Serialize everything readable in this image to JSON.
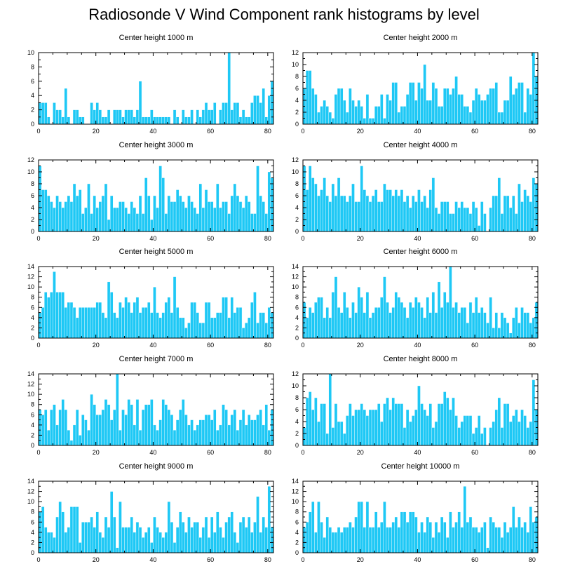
{
  "title": "Radiosonde V Wind Component rank histograms by level",
  "colors": {
    "bar": "#1ec8f5",
    "axis": "#000000"
  },
  "chart_data": [
    {
      "type": "bar",
      "title": "Center height 1000 m",
      "xlim": [
        0,
        82
      ],
      "ylim": [
        0,
        10
      ],
      "xticks": [
        0,
        20,
        40,
        60,
        80
      ],
      "yticks": [
        0,
        2,
        4,
        6,
        8,
        10
      ],
      "values": [
        3,
        3,
        3,
        1,
        0,
        3,
        2,
        2,
        1,
        5,
        1,
        0,
        2,
        2,
        1,
        1,
        0,
        0,
        3,
        2,
        3,
        2,
        1,
        1,
        2,
        0,
        2,
        2,
        2,
        1,
        2,
        2,
        2,
        1,
        2,
        6,
        1,
        1,
        1,
        2,
        1,
        1,
        1,
        1,
        1,
        1,
        0,
        2,
        1,
        0,
        2,
        1,
        1,
        2,
        0,
        2,
        1,
        2,
        3,
        2,
        2,
        3,
        0,
        2,
        3,
        3,
        10,
        2,
        3,
        3,
        1,
        2,
        1,
        1,
        3,
        4,
        4,
        3,
        5,
        1,
        4,
        6
      ]
    },
    {
      "type": "bar",
      "title": "Center height 2000 m",
      "xlim": [
        0,
        82
      ],
      "ylim": [
        0,
        12
      ],
      "xticks": [
        0,
        20,
        40,
        60,
        80
      ],
      "yticks": [
        0,
        2,
        4,
        6,
        8,
        10,
        12
      ],
      "values": [
        6,
        9,
        9,
        6,
        5,
        2,
        3,
        4,
        3,
        2,
        1,
        5,
        6,
        6,
        4,
        2,
        6,
        4,
        3,
        4,
        3,
        1,
        5,
        1,
        1,
        3,
        3,
        5,
        1,
        5,
        4,
        7,
        7,
        2,
        3,
        3,
        5,
        7,
        7,
        4,
        7,
        6,
        10,
        4,
        4,
        7,
        6,
        3,
        3,
        6,
        6,
        5,
        6,
        8,
        5,
        5,
        3,
        3,
        2,
        4,
        6,
        5,
        4,
        4,
        5,
        6,
        6,
        7,
        2,
        2,
        4,
        4,
        8,
        5,
        6,
        7,
        7,
        2,
        6,
        5,
        12,
        8
      ]
    },
    {
      "type": "bar",
      "title": "Center height 3000 m",
      "xlim": [
        0,
        82
      ],
      "ylim": [
        0,
        12
      ],
      "xticks": [
        0,
        20,
        40,
        60,
        80
      ],
      "yticks": [
        0,
        2,
        4,
        6,
        8,
        10,
        12
      ],
      "values": [
        11,
        7,
        7,
        6,
        5,
        4,
        6,
        5,
        4,
        5,
        6,
        5,
        8,
        6,
        7,
        3,
        4,
        8,
        3,
        6,
        4,
        5,
        6,
        8,
        2,
        6,
        4,
        4,
        5,
        5,
        4,
        3,
        5,
        4,
        3,
        6,
        3,
        9,
        6,
        2,
        6,
        4,
        11,
        9,
        3,
        6,
        5,
        5,
        7,
        6,
        5,
        4,
        6,
        5,
        4,
        3,
        8,
        4,
        7,
        5,
        5,
        4,
        8,
        4,
        5,
        5,
        3,
        6,
        8,
        6,
        5,
        4,
        6,
        5,
        3,
        3,
        11,
        6,
        5,
        3,
        10,
        9
      ]
    },
    {
      "type": "bar",
      "title": "Center height 4000 m",
      "xlim": [
        0,
        82
      ],
      "ylim": [
        0,
        12
      ],
      "xticks": [
        0,
        20,
        40,
        60,
        80
      ],
      "yticks": [
        0,
        2,
        4,
        6,
        8,
        10,
        12
      ],
      "values": [
        11,
        7,
        11,
        9,
        8,
        6,
        7,
        9,
        6,
        5,
        8,
        6,
        9,
        6,
        6,
        5,
        6,
        8,
        5,
        5,
        11,
        7,
        6,
        5,
        6,
        7,
        5,
        5,
        8,
        7,
        7,
        6,
        7,
        6,
        7,
        5,
        6,
        4,
        6,
        5,
        7,
        5,
        6,
        4,
        7,
        9,
        4,
        3,
        5,
        5,
        5,
        3,
        3,
        5,
        4,
        5,
        4,
        4,
        3,
        5,
        4,
        1,
        5,
        3,
        0,
        4,
        6,
        6,
        9,
        3,
        6,
        6,
        4,
        6,
        3,
        8,
        5,
        7,
        6,
        5,
        9,
        8
      ]
    },
    {
      "type": "bar",
      "title": "Center height 5000 m",
      "xlim": [
        0,
        82
      ],
      "ylim": [
        0,
        14
      ],
      "xticks": [
        0,
        20,
        40,
        60,
        80
      ],
      "yticks": [
        0,
        2,
        4,
        6,
        8,
        10,
        12,
        14
      ],
      "values": [
        5,
        6,
        9,
        8,
        9,
        13,
        9,
        9,
        9,
        6,
        7,
        7,
        6,
        4,
        6,
        6,
        6,
        6,
        6,
        6,
        7,
        7,
        5,
        4,
        11,
        9,
        5,
        4,
        7,
        6,
        8,
        7,
        5,
        7,
        8,
        5,
        6,
        6,
        7,
        5,
        10,
        5,
        4,
        5,
        7,
        8,
        5,
        12,
        6,
        4,
        4,
        2,
        3,
        7,
        7,
        5,
        3,
        3,
        7,
        7,
        4,
        4,
        5,
        5,
        8,
        8,
        4,
        8,
        5,
        6,
        6,
        2,
        3,
        4,
        7,
        9,
        3,
        5,
        5,
        3,
        6,
        5
      ]
    },
    {
      "type": "bar",
      "title": "Center height 6000 m",
      "xlim": [
        0,
        82
      ],
      "ylim": [
        0,
        14
      ],
      "xticks": [
        0,
        20,
        40,
        60,
        80
      ],
      "yticks": [
        0,
        2,
        4,
        6,
        8,
        10,
        12,
        14
      ],
      "values": [
        7,
        4,
        6,
        5,
        7,
        8,
        8,
        4,
        6,
        4,
        9,
        12,
        6,
        5,
        9,
        6,
        4,
        7,
        5,
        10,
        8,
        5,
        9,
        4,
        5,
        6,
        6,
        8,
        12,
        7,
        5,
        6,
        9,
        8,
        7,
        6,
        4,
        7,
        6,
        8,
        7,
        6,
        4,
        8,
        5,
        9,
        5,
        11,
        6,
        9,
        7,
        14,
        6,
        7,
        5,
        6,
        6,
        3,
        7,
        5,
        8,
        5,
        6,
        5,
        3,
        8,
        2,
        5,
        2,
        5,
        4,
        3,
        1,
        4,
        6,
        3,
        6,
        5,
        5,
        3,
        4,
        7
      ]
    },
    {
      "type": "bar",
      "title": "Center height 7000 m",
      "xlim": [
        0,
        82
      ],
      "ylim": [
        0,
        14
      ],
      "xticks": [
        0,
        20,
        40,
        60,
        80
      ],
      "yticks": [
        0,
        2,
        4,
        6,
        8,
        10,
        12,
        14
      ],
      "values": [
        7,
        6,
        7,
        3,
        7,
        8,
        4,
        7,
        9,
        7,
        3,
        1,
        4,
        7,
        2,
        6,
        5,
        3,
        10,
        8,
        6,
        6,
        7,
        9,
        8,
        5,
        7,
        14,
        3,
        7,
        6,
        9,
        8,
        4,
        9,
        3,
        7,
        8,
        8,
        9,
        4,
        3,
        5,
        9,
        8,
        7,
        6,
        3,
        5,
        7,
        9,
        6,
        4,
        5,
        3,
        4,
        5,
        5,
        6,
        6,
        5,
        7,
        3,
        4,
        8,
        7,
        4,
        6,
        7,
        3,
        5,
        7,
        4,
        6,
        5,
        5,
        6,
        7,
        4,
        8,
        3,
        7
      ]
    },
    {
      "type": "bar",
      "title": "Center height 8000 m",
      "xlim": [
        0,
        82
      ],
      "ylim": [
        0,
        12
      ],
      "xticks": [
        0,
        20,
        40,
        60,
        80
      ],
      "yticks": [
        0,
        2,
        4,
        6,
        8,
        10,
        12
      ],
      "values": [
        3,
        8,
        9,
        6,
        8,
        4,
        7,
        7,
        2,
        12,
        3,
        7,
        4,
        4,
        2,
        5,
        7,
        5,
        6,
        6,
        7,
        6,
        5,
        6,
        6,
        6,
        7,
        4,
        7,
        8,
        6,
        8,
        7,
        7,
        7,
        3,
        6,
        4,
        5,
        6,
        10,
        7,
        6,
        5,
        7,
        3,
        4,
        7,
        7,
        9,
        8,
        6,
        8,
        5,
        3,
        4,
        5,
        5,
        5,
        2,
        3,
        5,
        2,
        3,
        0,
        3,
        4,
        6,
        8,
        3,
        7,
        7,
        4,
        5,
        6,
        4,
        6,
        5,
        3,
        4,
        11,
        6
      ]
    },
    {
      "type": "bar",
      "title": "Center height 9000 m",
      "xlim": [
        0,
        82
      ],
      "ylim": [
        0,
        14
      ],
      "xticks": [
        0,
        20,
        40,
        60,
        80
      ],
      "yticks": [
        0,
        2,
        4,
        6,
        8,
        10,
        12,
        14
      ],
      "values": [
        8,
        9,
        5,
        4,
        4,
        3,
        7,
        10,
        8,
        4,
        5,
        9,
        9,
        9,
        2,
        6,
        6,
        6,
        7,
        5,
        8,
        4,
        3,
        7,
        5,
        12,
        7,
        1,
        10,
        5,
        5,
        5,
        7,
        4,
        6,
        5,
        3,
        4,
        5,
        2,
        7,
        5,
        4,
        3,
        4,
        10,
        6,
        2,
        5,
        8,
        6,
        4,
        7,
        5,
        6,
        6,
        3,
        5,
        7,
        3,
        7,
        4,
        8,
        5,
        3,
        6,
        7,
        8,
        4,
        2,
        6,
        7,
        5,
        7,
        4,
        6,
        11,
        4,
        7,
        5,
        13,
        5
      ]
    },
    {
      "type": "bar",
      "title": "Center height 10000 m",
      "xlim": [
        0,
        82
      ],
      "ylim": [
        0,
        14
      ],
      "xticks": [
        0,
        20,
        40,
        60,
        80
      ],
      "yticks": [
        0,
        2,
        4,
        6,
        8,
        10,
        12,
        14
      ],
      "values": [
        5,
        6,
        8,
        10,
        4,
        10,
        6,
        3,
        7,
        5,
        4,
        4,
        5,
        4,
        5,
        5,
        6,
        5,
        7,
        10,
        10,
        5,
        10,
        5,
        5,
        8,
        5,
        6,
        10,
        5,
        5,
        6,
        7,
        5,
        8,
        8,
        6,
        8,
        8,
        7,
        4,
        6,
        4,
        7,
        6,
        3,
        6,
        4,
        7,
        6,
        3,
        8,
        5,
        6,
        8,
        5,
        13,
        6,
        7,
        5,
        5,
        4,
        5,
        6,
        1,
        7,
        6,
        5,
        5,
        3,
        6,
        4,
        5,
        9,
        5,
        7,
        5,
        6,
        4,
        9,
        6,
        7
      ]
    }
  ]
}
